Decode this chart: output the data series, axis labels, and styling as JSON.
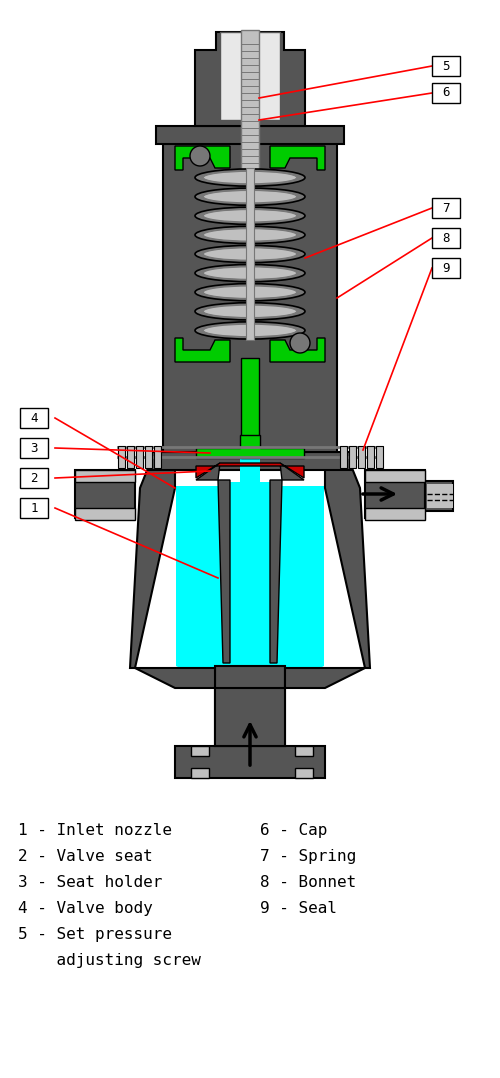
{
  "bg_color": "#ffffff",
  "gray": "#808080",
  "dark_gray": "#555555",
  "mid_gray": "#777777",
  "light_gray": "#c0c0c0",
  "cyan": "#00ffff",
  "green": "#00cc00",
  "red_valve": "#cc0000",
  "legend_left": [
    "1 - Inlet nozzle",
    "2 - Valve seat",
    "3 - Seat holder",
    "4 - Valve body",
    "5 - Set pressure",
    "    adjusting screw"
  ],
  "legend_right": [
    "6 - Cap",
    "7 - Spring",
    "8 - Bonnet",
    "9 - Seal"
  ]
}
